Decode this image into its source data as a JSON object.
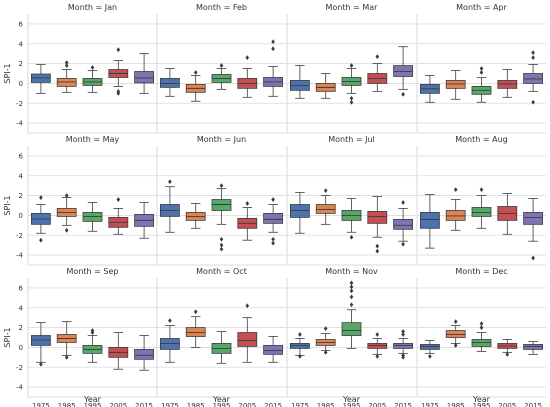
{
  "chart_data": {
    "type": "boxplot-facet",
    "ylabel": "SPI-1",
    "xlabel": "Year",
    "ylim": [
      -5,
      7
    ],
    "yticks": [
      -4,
      -2,
      0,
      2,
      4,
      6
    ],
    "categories": [
      "1975",
      "1985",
      "1995",
      "2005",
      "2015"
    ],
    "colors": [
      "#4c72b0",
      "#dd8452",
      "#55a868",
      "#c44e52",
      "#8172b3"
    ],
    "grid": true,
    "panels": [
      {
        "title": "Month = Jan",
        "boxes": [
          {
            "q1": 0.1,
            "med": 0.55,
            "q3": 0.95,
            "lo": -1.0,
            "hi": 1.9,
            "fliers": []
          },
          {
            "q1": -0.3,
            "med": 0.15,
            "q3": 0.5,
            "lo": -0.9,
            "hi": 1.4,
            "fliers": [
              1.8,
              2.1
            ]
          },
          {
            "q1": -0.2,
            "med": 0.15,
            "q3": 0.5,
            "lo": -0.9,
            "hi": 1.3,
            "fliers": [
              1.6
            ]
          },
          {
            "q1": 0.6,
            "med": 1.0,
            "q3": 1.4,
            "lo": -0.3,
            "hi": 2.3,
            "fliers": [
              3.4,
              -0.8,
              -1.0
            ]
          },
          {
            "q1": 0.05,
            "med": 0.55,
            "q3": 1.2,
            "lo": -1.0,
            "hi": 3.0,
            "fliers": []
          }
        ]
      },
      {
        "title": "Month = Feb",
        "boxes": [
          {
            "q1": -0.4,
            "med": 0.0,
            "q3": 0.5,
            "lo": -1.3,
            "hi": 1.5,
            "fliers": []
          },
          {
            "q1": -0.9,
            "med": -0.5,
            "q3": -0.1,
            "lo": -1.8,
            "hi": 0.8,
            "fliers": [
              1.1
            ]
          },
          {
            "q1": 0.1,
            "med": 0.5,
            "q3": 0.9,
            "lo": -0.6,
            "hi": 1.5,
            "fliers": [
              1.8
            ]
          },
          {
            "q1": -0.5,
            "med": 0.0,
            "q3": 0.5,
            "lo": -1.4,
            "hi": 1.5,
            "fliers": [
              2.6
            ]
          },
          {
            "q1": -0.3,
            "med": 0.15,
            "q3": 0.6,
            "lo": -1.3,
            "hi": 1.7,
            "fliers": [
              3.5,
              4.2
            ]
          }
        ]
      },
      {
        "title": "Month = Mar",
        "boxes": [
          {
            "q1": -0.7,
            "med": -0.2,
            "q3": 0.3,
            "lo": -1.5,
            "hi": 1.8,
            "fliers": []
          },
          {
            "q1": -0.8,
            "med": -0.4,
            "q3": 0.0,
            "lo": -1.5,
            "hi": 1.0,
            "fliers": []
          },
          {
            "q1": -0.2,
            "med": 0.2,
            "q3": 0.6,
            "lo": -1.0,
            "hi": 1.5,
            "fliers": [
              1.8,
              -1.5,
              -1.9
            ]
          },
          {
            "q1": 0.0,
            "med": 0.5,
            "q3": 1.0,
            "lo": -0.8,
            "hi": 2.0,
            "fliers": [
              2.7
            ]
          },
          {
            "q1": 0.7,
            "med": 1.2,
            "q3": 1.8,
            "lo": -0.6,
            "hi": 3.7,
            "fliers": [
              -1.1
            ]
          }
        ]
      },
      {
        "title": "Month = Apr",
        "boxes": [
          {
            "q1": -1.0,
            "med": -0.55,
            "q3": -0.1,
            "lo": -1.9,
            "hi": 0.8,
            "fliers": []
          },
          {
            "q1": -0.5,
            "med": -0.05,
            "q3": 0.3,
            "lo": -1.6,
            "hi": 1.3,
            "fliers": []
          },
          {
            "q1": -1.1,
            "med": -0.7,
            "q3": -0.3,
            "lo": -1.9,
            "hi": 0.6,
            "fliers": [
              1.1,
              1.5
            ]
          },
          {
            "q1": -0.5,
            "med": -0.05,
            "q3": 0.3,
            "lo": -1.4,
            "hi": 1.4,
            "fliers": []
          },
          {
            "q1": 0.0,
            "med": 0.45,
            "q3": 1.0,
            "lo": -0.8,
            "hi": 1.9,
            "fliers": [
              2.6,
              3.1,
              -1.9
            ]
          }
        ]
      },
      {
        "title": "Month = May",
        "boxes": [
          {
            "q1": -0.9,
            "med": -0.35,
            "q3": 0.2,
            "lo": -1.8,
            "hi": 1.1,
            "fliers": [
              1.8,
              -2.5
            ]
          },
          {
            "q1": -0.1,
            "med": 0.3,
            "q3": 0.7,
            "lo": -1.0,
            "hi": 1.8,
            "fliers": [
              2.0,
              -1.5
            ]
          },
          {
            "q1": -0.6,
            "med": -0.1,
            "q3": 0.3,
            "lo": -1.6,
            "hi": 1.3,
            "fliers": []
          },
          {
            "q1": -1.2,
            "med": -0.7,
            "q3": -0.2,
            "lo": -1.9,
            "hi": 0.7,
            "fliers": [
              1.6
            ]
          },
          {
            "q1": -1.1,
            "med": -0.5,
            "q3": 0.1,
            "lo": -2.3,
            "hi": 1.3,
            "fliers": []
          }
        ]
      },
      {
        "title": "Month = Jun",
        "boxes": [
          {
            "q1": -0.1,
            "med": 0.5,
            "q3": 1.1,
            "lo": -1.7,
            "hi": 2.9,
            "fliers": [
              3.4
            ]
          },
          {
            "q1": -0.5,
            "med": -0.1,
            "q3": 0.3,
            "lo": -1.3,
            "hi": 1.2,
            "fliers": []
          },
          {
            "q1": 0.5,
            "med": 1.1,
            "q3": 1.6,
            "lo": -0.9,
            "hi": 2.7,
            "fliers": [
              3.0,
              -2.4,
              -3.0,
              -3.4
            ]
          },
          {
            "q1": -1.3,
            "med": -0.8,
            "q3": -0.3,
            "lo": -2.5,
            "hi": 0.8,
            "fliers": [
              1.2
            ]
          },
          {
            "q1": -0.8,
            "med": -0.4,
            "q3": 0.2,
            "lo": -1.7,
            "hi": 1.1,
            "fliers": [
              1.6,
              -2.4,
              -2.8
            ]
          }
        ]
      },
      {
        "title": "Month = Jul",
        "boxes": [
          {
            "q1": -0.2,
            "med": 0.5,
            "q3": 1.1,
            "lo": -1.8,
            "hi": 2.3,
            "fliers": []
          },
          {
            "q1": 0.2,
            "med": 0.6,
            "q3": 1.1,
            "lo": -0.9,
            "hi": 2.0,
            "fliers": [
              2.5
            ]
          },
          {
            "q1": -0.5,
            "med": 0.0,
            "q3": 0.5,
            "lo": -1.7,
            "hi": 1.7,
            "fliers": [
              -2.2
            ]
          },
          {
            "q1": -0.8,
            "med": -0.1,
            "q3": 0.4,
            "lo": -2.2,
            "hi": 1.9,
            "fliers": [
              -3.1,
              -3.6
            ]
          },
          {
            "q1": -1.4,
            "med": -1.0,
            "q3": -0.4,
            "lo": -2.6,
            "hi": 0.7,
            "fliers": [
              1.3,
              -2.9
            ]
          }
        ]
      },
      {
        "title": "Month = Aug",
        "boxes": [
          {
            "q1": -1.3,
            "med": -0.4,
            "q3": 0.3,
            "lo": -3.3,
            "hi": 2.1,
            "fliers": []
          },
          {
            "q1": -0.5,
            "med": -0.05,
            "q3": 0.5,
            "lo": -1.5,
            "hi": 1.6,
            "fliers": [
              2.6
            ]
          },
          {
            "q1": -0.1,
            "med": 0.3,
            "q3": 0.8,
            "lo": -1.3,
            "hi": 2.0,
            "fliers": [
              2.6
            ]
          },
          {
            "q1": -0.5,
            "med": 0.2,
            "q3": 0.9,
            "lo": -1.9,
            "hi": 2.2,
            "fliers": []
          },
          {
            "q1": -0.9,
            "med": -0.2,
            "q3": 0.3,
            "lo": -2.6,
            "hi": 1.7,
            "fliers": [
              -4.3
            ]
          }
        ]
      },
      {
        "title": "Month = Sep",
        "boxes": [
          {
            "q1": 0.2,
            "med": 0.75,
            "q3": 1.2,
            "lo": -1.5,
            "hi": 2.5,
            "fliers": [
              -1.7
            ]
          },
          {
            "q1": 0.5,
            "med": 0.9,
            "q3": 1.3,
            "lo": -0.8,
            "hi": 2.6,
            "fliers": [
              -1.0
            ]
          },
          {
            "q1": -0.6,
            "med": -0.2,
            "q3": 0.2,
            "lo": -1.5,
            "hi": 1.2,
            "fliers": [
              1.5,
              1.7
            ]
          },
          {
            "q1": -1.0,
            "med": -0.5,
            "q3": 0.0,
            "lo": -2.2,
            "hi": 1.5,
            "fliers": []
          },
          {
            "q1": -1.2,
            "med": -0.8,
            "q3": -0.2,
            "lo": -2.3,
            "hi": 1.2,
            "fliers": []
          }
        ]
      },
      {
        "title": "Month = Oct",
        "boxes": [
          {
            "q1": -0.2,
            "med": 0.4,
            "q3": 0.9,
            "lo": -1.5,
            "hi": 2.2,
            "fliers": [
              2.7
            ]
          },
          {
            "q1": 1.1,
            "med": 1.5,
            "q3": 2.0,
            "lo": 0.0,
            "hi": 3.1,
            "fliers": [
              3.6
            ]
          },
          {
            "q1": -0.6,
            "med": -0.1,
            "q3": 0.4,
            "lo": -1.6,
            "hi": 1.6,
            "fliers": []
          },
          {
            "q1": 0.1,
            "med": 0.7,
            "q3": 1.5,
            "lo": -1.5,
            "hi": 3.0,
            "fliers": [
              4.2
            ]
          },
          {
            "q1": -0.7,
            "med": -0.3,
            "q3": 0.2,
            "lo": -1.5,
            "hi": 1.1,
            "fliers": []
          }
        ]
      },
      {
        "title": "Month = Nov",
        "boxes": [
          {
            "q1": -0.1,
            "med": 0.2,
            "q3": 0.4,
            "lo": -0.8,
            "hi": 0.9,
            "fliers": [
              1.3,
              -0.9
            ]
          },
          {
            "q1": 0.2,
            "med": 0.5,
            "q3": 0.8,
            "lo": -0.3,
            "hi": 1.4,
            "fliers": [
              1.9,
              -0.5
            ]
          },
          {
            "q1": 1.2,
            "med": 1.7,
            "q3": 2.5,
            "lo": -0.1,
            "hi": 3.8,
            "fliers": [
              4.3,
              5.1,
              5.7,
              6.1,
              6.5
            ]
          },
          {
            "q1": -0.1,
            "med": 0.2,
            "q3": 0.4,
            "lo": -0.7,
            "hi": 0.9,
            "fliers": [
              1.3,
              -0.9
            ]
          },
          {
            "q1": -0.1,
            "med": 0.2,
            "q3": 0.4,
            "lo": -0.6,
            "hi": 0.9,
            "fliers": [
              1.3,
              1.6,
              -0.8,
              -1.0
            ]
          }
        ]
      },
      {
        "title": "Month = Dec",
        "boxes": [
          {
            "q1": -0.2,
            "med": 0.1,
            "q3": 0.3,
            "lo": -0.6,
            "hi": 0.7,
            "fliers": [
              -0.9
            ]
          },
          {
            "q1": 1.0,
            "med": 1.3,
            "q3": 1.7,
            "lo": 0.4,
            "hi": 2.2,
            "fliers": [
              2.6,
              0.2
            ]
          },
          {
            "q1": 0.1,
            "med": 0.5,
            "q3": 0.8,
            "lo": -0.4,
            "hi": 1.5,
            "fliers": [
              2.0,
              2.4
            ]
          },
          {
            "q1": -0.1,
            "med": 0.15,
            "q3": 0.4,
            "lo": -0.5,
            "hi": 0.8,
            "fliers": [
              -0.7
            ]
          },
          {
            "q1": -0.2,
            "med": 0.1,
            "q3": 0.3,
            "lo": -0.7,
            "hi": 0.6,
            "fliers": []
          }
        ]
      }
    ]
  }
}
